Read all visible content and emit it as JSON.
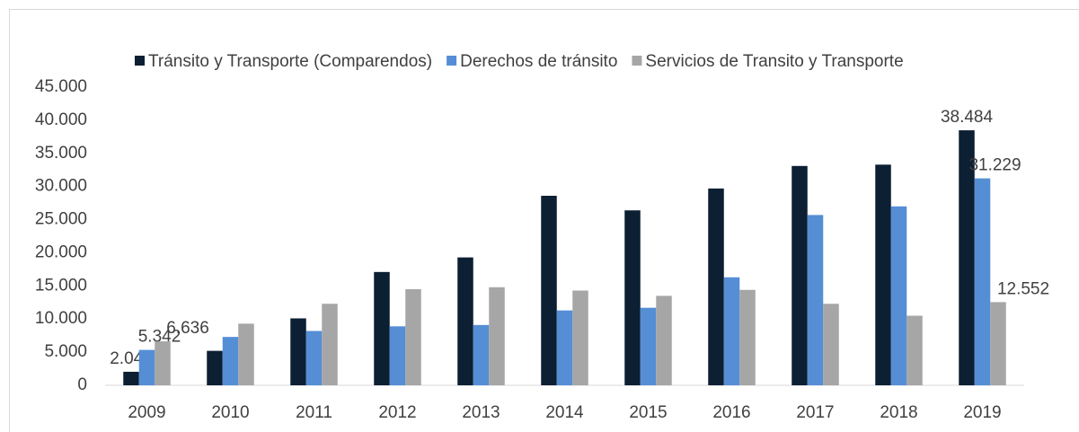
{
  "chart_data": {
    "type": "bar",
    "categories": [
      "2009",
      "2010",
      "2011",
      "2012",
      "2013",
      "2014",
      "2015",
      "2016",
      "2017",
      "2018",
      "2019"
    ],
    "series": [
      {
        "name": "Tránsito y Transporte (Comparendos)",
        "color": "#0c1f33",
        "values": [
          2040,
          5200,
          10100,
          17100,
          19300,
          28600,
          26400,
          29700,
          33100,
          33300,
          38484
        ],
        "value_labels": [
          "2.040",
          null,
          null,
          null,
          null,
          null,
          null,
          null,
          null,
          null,
          "38.484"
        ]
      },
      {
        "name": "Derechos de tránsito",
        "color": "#558ed5",
        "values": [
          5342,
          7300,
          8200,
          8900,
          9100,
          11300,
          11700,
          16300,
          25700,
          27000,
          31229
        ],
        "value_labels": [
          "5.342",
          null,
          null,
          null,
          null,
          null,
          null,
          null,
          null,
          null,
          "31.229"
        ]
      },
      {
        "name": "Servicios de Transito y Transporte",
        "color": "#a6a6a6",
        "values": [
          6636,
          9300,
          12300,
          14500,
          14800,
          14300,
          13500,
          14400,
          12300,
          10500,
          12552
        ],
        "value_labels": [
          "6.636",
          null,
          null,
          null,
          null,
          null,
          null,
          null,
          null,
          null,
          "12.552"
        ]
      }
    ],
    "ylim": [
      0,
      45000
    ],
    "yticks": [
      0,
      {
        "value": 5000,
        "label": "5.000"
      },
      {
        "value": 10000,
        "label": "10.000"
      },
      {
        "value": 15000,
        "label": "15.000"
      },
      {
        "value": 20000,
        "label": "20.000"
      },
      {
        "value": 25000,
        "label": "25.000"
      },
      {
        "value": 30000,
        "label": "30.000"
      },
      {
        "value": 35000,
        "label": "35.000"
      },
      {
        "value": 40000,
        "label": "40.000"
      },
      {
        "value": 45000,
        "label": "45.000"
      }
    ],
    "grid": false,
    "legend": "top"
  }
}
